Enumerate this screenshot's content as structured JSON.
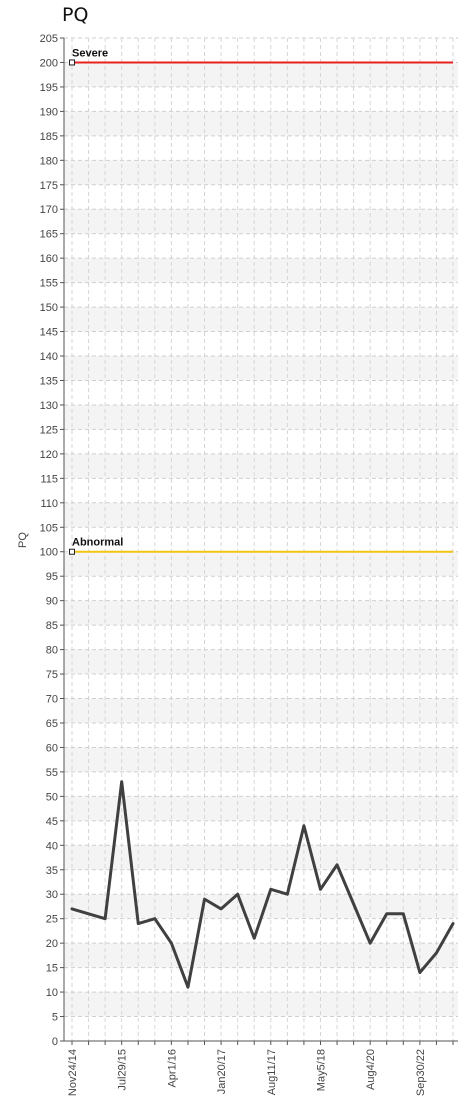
{
  "chart_data": {
    "type": "line",
    "title": "PQ",
    "ylabel": "PQ",
    "xlabel": "",
    "ylim": [
      0,
      205
    ],
    "ytick_step": 5,
    "xtick_labels": [
      {
        "label": "Nov24/14",
        "index": 0
      },
      {
        "label": "Jul29/15",
        "index": 3
      },
      {
        "label": "Apr1/16",
        "index": 6
      },
      {
        "label": "Jan20/17",
        "index": 9
      },
      {
        "label": "Aug11/17",
        "index": 12
      },
      {
        "label": "May5/18",
        "index": 15
      },
      {
        "label": "Aug4/20",
        "index": 18
      },
      {
        "label": "Sep30/22",
        "index": 21
      }
    ],
    "series": [
      {
        "color": "#404040",
        "values": [
          27,
          26,
          25,
          53,
          24,
          25,
          20,
          11,
          29,
          27,
          30,
          21,
          31,
          30,
          44,
          31,
          36,
          28,
          20,
          26,
          26,
          14,
          18,
          24
        ]
      }
    ],
    "reference_lines": [
      {
        "label": "Severe",
        "value": 200,
        "color": "#e82020"
      },
      {
        "label": "Abnormal",
        "value": 100,
        "color": "#f2c414"
      }
    ],
    "grid": true
  }
}
